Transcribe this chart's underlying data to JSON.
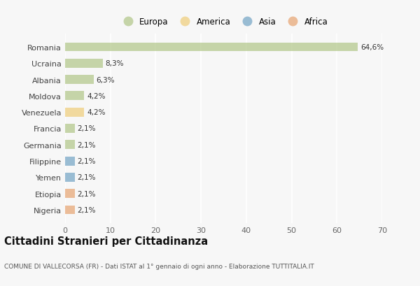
{
  "countries": [
    "Romania",
    "Ucraina",
    "Albania",
    "Moldova",
    "Venezuela",
    "Francia",
    "Germania",
    "Filippine",
    "Yemen",
    "Etiopia",
    "Nigeria"
  ],
  "values": [
    64.6,
    8.3,
    6.3,
    4.2,
    4.2,
    2.1,
    2.1,
    2.1,
    2.1,
    2.1,
    2.1
  ],
  "labels": [
    "64,6%",
    "8,3%",
    "6,3%",
    "4,2%",
    "4,2%",
    "2,1%",
    "2,1%",
    "2,1%",
    "2,1%",
    "2,1%",
    "2,1%"
  ],
  "continents": [
    "Europa",
    "Europa",
    "Europa",
    "Europa",
    "America",
    "Europa",
    "Europa",
    "Asia",
    "Asia",
    "Africa",
    "Africa"
  ],
  "colors": {
    "Europa": "#b5c98e",
    "America": "#f0d080",
    "Asia": "#7aa8c8",
    "Africa": "#e8a878"
  },
  "legend_order": [
    "Europa",
    "America",
    "Asia",
    "Africa"
  ],
  "legend_colors": [
    "#b5c98e",
    "#f0d080",
    "#7aa8c8",
    "#e8a878"
  ],
  "xlim": [
    0,
    70
  ],
  "xticks": [
    0,
    10,
    20,
    30,
    40,
    50,
    60,
    70
  ],
  "title": "Cittadini Stranieri per Cittadinanza",
  "subtitle": "COMUNE DI VALLECORSA (FR) - Dati ISTAT al 1° gennaio di ogni anno - Elaborazione TUTTITALIA.IT",
  "bg_color": "#f7f7f7",
  "grid_color": "#ffffff",
  "bar_alpha": 0.75,
  "bar_height": 0.55
}
